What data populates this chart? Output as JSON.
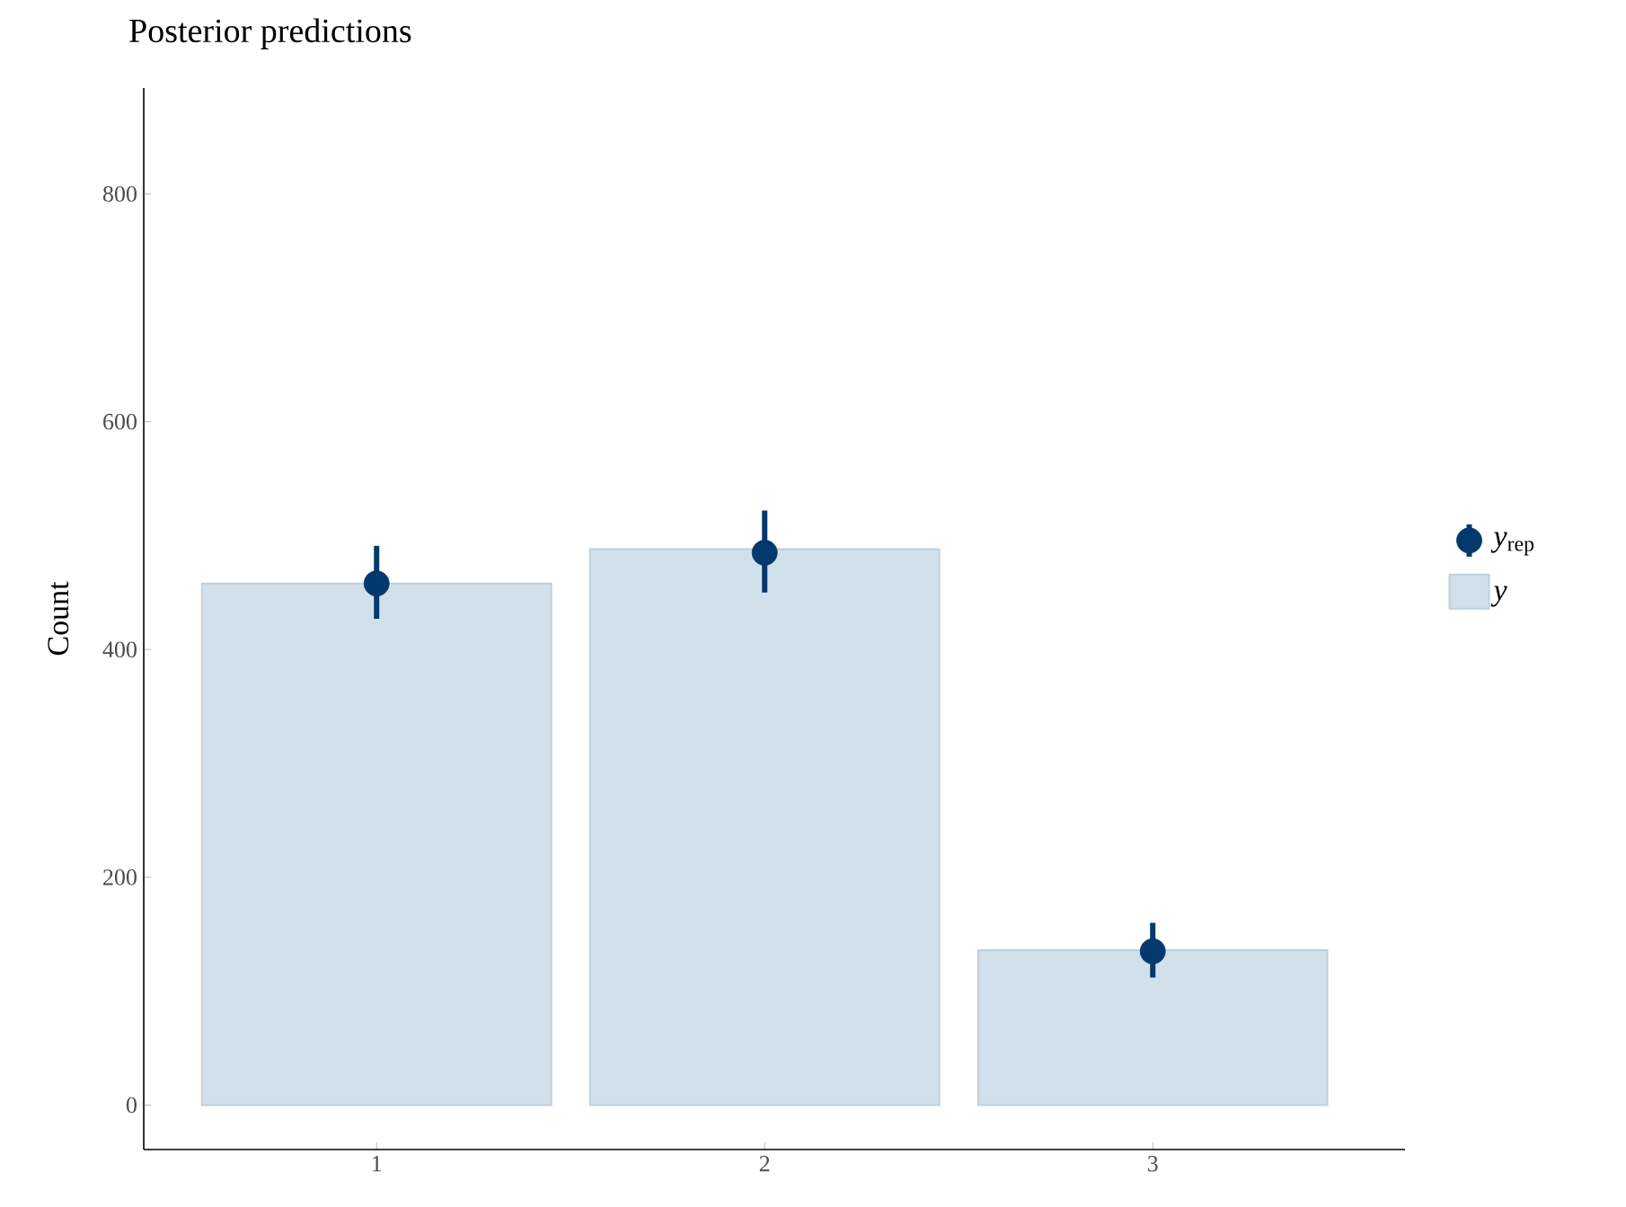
{
  "chart_data": {
    "type": "bar",
    "title": "Posterior predictions",
    "ylabel": "Count",
    "categories": [
      "1",
      "2",
      "3"
    ],
    "series": [
      {
        "name": "*y*",
        "color": "#d1e1ec",
        "values": [
          458,
          488,
          136
        ]
      },
      {
        "name": "*y*$_{rep}$",
        "type": "scatter",
        "marker": "circle",
        "color": "#03396c",
        "values": [
          458,
          485,
          135
        ],
        "errors": [
          [
            427,
            491
          ],
          [
            450,
            522
          ],
          [
            112,
            160
          ]
        ]
      }
    ],
    "ylim": [
      -39,
      893
    ],
    "yticks": [
      0,
      200,
      400,
      600,
      800
    ],
    "legend": "right"
  }
}
